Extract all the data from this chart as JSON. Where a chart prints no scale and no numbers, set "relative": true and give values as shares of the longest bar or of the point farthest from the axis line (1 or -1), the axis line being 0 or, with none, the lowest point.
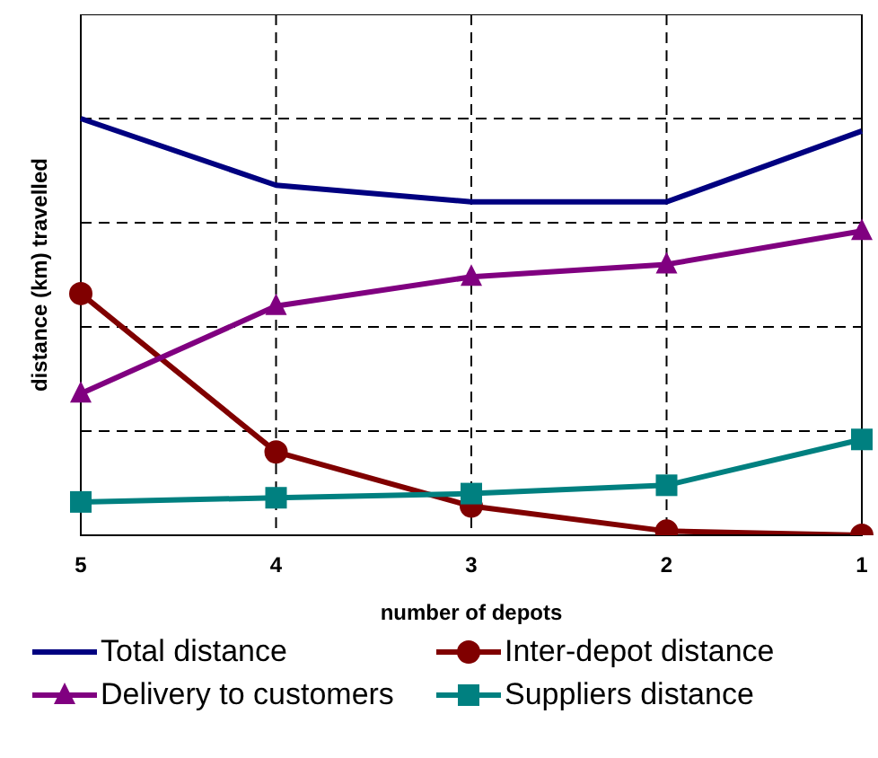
{
  "chart_data": {
    "type": "line",
    "relative": true,
    "xlabel": "number of depots",
    "ylabel": "distance (km) travelled",
    "categories": [
      "5",
      "4",
      "3",
      "2",
      "1"
    ],
    "grid": true,
    "legend": "bottom",
    "line_style": "solid",
    "series": [
      {
        "name": "Total distance",
        "color": "#000080",
        "marker": "none",
        "values": [
          1,
          0.84,
          0.8,
          0.8,
          0.97
        ]
      },
      {
        "name": "Inter-depot distance",
        "color": "#800000",
        "marker": "circle",
        "values": [
          0.58,
          0.2,
          0.07,
          0.01,
          0
        ]
      },
      {
        "name": "Delivery to customers",
        "color": "#800080",
        "marker": "triangle",
        "values": [
          0.34,
          0.55,
          0.62,
          0.65,
          0.73
        ]
      },
      {
        "name": "Suppliers distance",
        "color": "#008080",
        "marker": "square",
        "values": [
          0.08,
          0.09,
          0.1,
          0.12,
          0.23
        ]
      }
    ]
  }
}
